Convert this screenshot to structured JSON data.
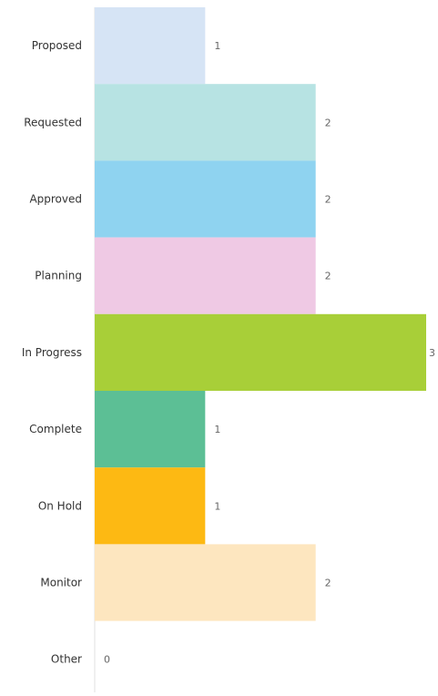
{
  "chart_data": {
    "type": "bar",
    "orientation": "horizontal",
    "categories": [
      "Proposed",
      "Requested",
      "Approved",
      "Planning",
      "In Progress",
      "Complete",
      "On Hold",
      "Monitor",
      "Other"
    ],
    "values": [
      1,
      2,
      2,
      2,
      3,
      1,
      1,
      2,
      0
    ],
    "value_labels": [
      "1",
      "2",
      "2",
      "2",
      "3",
      "1",
      "1",
      "2",
      "0"
    ],
    "colors": [
      "#d6e4f5",
      "#b7e3e3",
      "#8fd3f0",
      "#efc9e4",
      "#a8cf38",
      "#5cbf95",
      "#fdb913",
      "#fde6bf",
      "#e0e0e0"
    ],
    "xlim": [
      0,
      3
    ],
    "grid": false,
    "legend": "none",
    "title": "",
    "xlabel": "",
    "ylabel": ""
  }
}
